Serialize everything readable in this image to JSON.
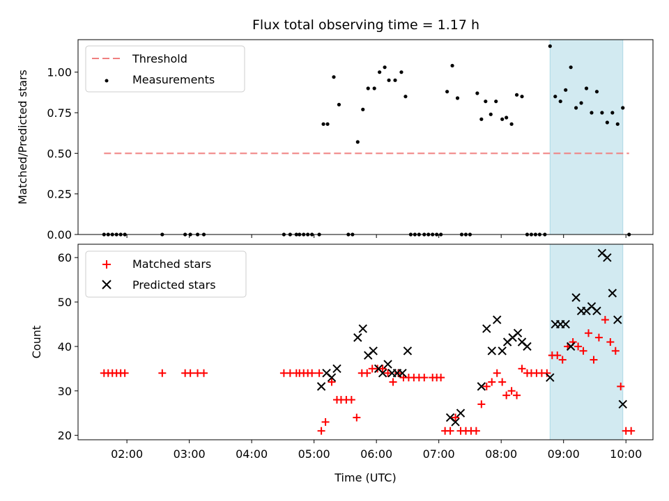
{
  "chart_data": {
    "title": "Flux total observing time = 1.17 h",
    "xlabel": "Time (UTC)",
    "x_ticks": [
      "02:00",
      "03:00",
      "04:00",
      "05:00",
      "06:00",
      "07:00",
      "08:00",
      "09:00",
      "10:00"
    ],
    "xlim": [
      "01:13",
      "10:26"
    ],
    "shaded_region": {
      "start": "08:47",
      "end": "09:57",
      "color": "#add8e6"
    },
    "top": {
      "type": "scatter",
      "ylabel": "Matched/Predicted stars",
      "ylim": [
        0,
        1.2
      ],
      "y_ticks": [
        "0.00",
        "0.25",
        "0.50",
        "0.75",
        "1.00"
      ],
      "legend": {
        "placement": "top-left",
        "entries": [
          "Threshold",
          "Measurements"
        ]
      },
      "threshold": {
        "name": "Threshold",
        "value": 0.5,
        "x_start": "01:38",
        "x_end": "10:03",
        "color": "#f08080",
        "style": "dashed"
      },
      "measurements": {
        "name": "Measurements",
        "color": "#000000",
        "points": [
          [
            "01:38",
            0
          ],
          [
            "01:42",
            0
          ],
          [
            "01:46",
            0
          ],
          [
            "01:50",
            0
          ],
          [
            "01:54",
            0
          ],
          [
            "01:58",
            0
          ],
          [
            "02:34",
            0
          ],
          [
            "02:56",
            0
          ],
          [
            "03:01",
            0
          ],
          [
            "03:08",
            0
          ],
          [
            "03:14",
            0
          ],
          [
            "04:31",
            0
          ],
          [
            "04:37",
            0
          ],
          [
            "04:43",
            0
          ],
          [
            "04:46",
            0
          ],
          [
            "04:50",
            0
          ],
          [
            "04:54",
            0
          ],
          [
            "04:58",
            0
          ],
          [
            "05:05",
            0
          ],
          [
            "05:09",
            0.68
          ],
          [
            "05:13",
            0.68
          ],
          [
            "05:19",
            0.97
          ],
          [
            "05:24",
            0.8
          ],
          [
            "05:33",
            0
          ],
          [
            "05:37",
            0
          ],
          [
            "05:42",
            0.57
          ],
          [
            "05:47",
            0.77
          ],
          [
            "05:52",
            0.9
          ],
          [
            "05:58",
            0.9
          ],
          [
            "06:03",
            1.0
          ],
          [
            "06:08",
            1.03
          ],
          [
            "06:12",
            0.95
          ],
          [
            "06:18",
            0.95
          ],
          [
            "06:24",
            1.0
          ],
          [
            "06:28",
            0.85
          ],
          [
            "06:33",
            0
          ],
          [
            "06:37",
            0
          ],
          [
            "06:41",
            0
          ],
          [
            "06:46",
            0
          ],
          [
            "06:50",
            0
          ],
          [
            "06:54",
            0
          ],
          [
            "06:58",
            0
          ],
          [
            "07:02",
            0
          ],
          [
            "07:08",
            0.88
          ],
          [
            "07:13",
            1.04
          ],
          [
            "07:18",
            0.84
          ],
          [
            "07:22",
            0
          ],
          [
            "07:26",
            0
          ],
          [
            "07:30",
            0
          ],
          [
            "07:37",
            0.87
          ],
          [
            "07:41",
            0.71
          ],
          [
            "07:45",
            0.82
          ],
          [
            "07:50",
            0.74
          ],
          [
            "07:55",
            0.82
          ],
          [
            "08:01",
            0.71
          ],
          [
            "08:05",
            0.72
          ],
          [
            "08:10",
            0.68
          ],
          [
            "08:15",
            0.86
          ],
          [
            "08:20",
            0.85
          ],
          [
            "08:25",
            0
          ],
          [
            "08:29",
            0
          ],
          [
            "08:33",
            0
          ],
          [
            "08:37",
            0
          ],
          [
            "08:42",
            0
          ],
          [
            "08:47",
            1.16
          ],
          [
            "08:52",
            0.85
          ],
          [
            "08:57",
            0.82
          ],
          [
            "09:02",
            0.89
          ],
          [
            "09:07",
            1.03
          ],
          [
            "09:12",
            0.78
          ],
          [
            "09:17",
            0.81
          ],
          [
            "09:22",
            0.9
          ],
          [
            "09:27",
            0.75
          ],
          [
            "09:32",
            0.88
          ],
          [
            "09:37",
            0.75
          ],
          [
            "09:42",
            0.69
          ],
          [
            "09:47",
            0.75
          ],
          [
            "09:52",
            0.68
          ],
          [
            "09:57",
            0.78
          ],
          [
            "10:03",
            0
          ]
        ]
      }
    },
    "bottom": {
      "type": "scatter",
      "ylabel": "Count",
      "ylim": [
        19,
        63
      ],
      "y_ticks": [
        "20",
        "30",
        "40",
        "50",
        "60"
      ],
      "legend": {
        "placement": "top-left",
        "entries": [
          "Matched stars",
          "Predicted stars"
        ]
      },
      "matched": {
        "name": "Matched stars",
        "color": "#ff0000",
        "marker": "plus",
        "points": [
          [
            "01:38",
            34
          ],
          [
            "01:42",
            34
          ],
          [
            "01:46",
            34
          ],
          [
            "01:50",
            34
          ],
          [
            "01:54",
            34
          ],
          [
            "01:58",
            34
          ],
          [
            "02:34",
            34
          ],
          [
            "02:56",
            34
          ],
          [
            "03:01",
            34
          ],
          [
            "03:08",
            34
          ],
          [
            "03:14",
            34
          ],
          [
            "04:31",
            34
          ],
          [
            "04:37",
            34
          ],
          [
            "04:43",
            34
          ],
          [
            "04:46",
            34
          ],
          [
            "04:50",
            34
          ],
          [
            "04:54",
            34
          ],
          [
            "04:58",
            34
          ],
          [
            "05:05",
            34
          ],
          [
            "05:07",
            21
          ],
          [
            "05:11",
            23
          ],
          [
            "05:17",
            32
          ],
          [
            "05:22",
            28
          ],
          [
            "05:26",
            28
          ],
          [
            "05:31",
            28
          ],
          [
            "05:36",
            28
          ],
          [
            "05:41",
            24
          ],
          [
            "05:46",
            34
          ],
          [
            "05:51",
            34
          ],
          [
            "05:56",
            35
          ],
          [
            "06:01",
            35
          ],
          [
            "06:06",
            35
          ],
          [
            "06:11",
            34
          ],
          [
            "06:16",
            32
          ],
          [
            "06:21",
            34
          ],
          [
            "06:26",
            33
          ],
          [
            "06:31",
            33
          ],
          [
            "06:36",
            33
          ],
          [
            "06:41",
            33
          ],
          [
            "06:46",
            33
          ],
          [
            "06:54",
            33
          ],
          [
            "06:58",
            33
          ],
          [
            "07:02",
            33
          ],
          [
            "07:06",
            21
          ],
          [
            "07:11",
            21
          ],
          [
            "07:16",
            24
          ],
          [
            "07:21",
            21
          ],
          [
            "07:26",
            21
          ],
          [
            "07:31",
            21
          ],
          [
            "07:36",
            21
          ],
          [
            "07:41",
            27
          ],
          [
            "07:46",
            31
          ],
          [
            "07:51",
            32
          ],
          [
            "07:56",
            34
          ],
          [
            "08:01",
            32
          ],
          [
            "08:05",
            29
          ],
          [
            "08:10",
            30
          ],
          [
            "08:15",
            29
          ],
          [
            "08:20",
            35
          ],
          [
            "08:25",
            34
          ],
          [
            "08:29",
            34
          ],
          [
            "08:34",
            34
          ],
          [
            "08:39",
            34
          ],
          [
            "08:44",
            34
          ],
          [
            "08:49",
            38
          ],
          [
            "08:54",
            38
          ],
          [
            "08:59",
            37
          ],
          [
            "09:04",
            40
          ],
          [
            "09:09",
            41
          ],
          [
            "09:14",
            40
          ],
          [
            "09:19",
            39
          ],
          [
            "09:24",
            43
          ],
          [
            "09:29",
            37
          ],
          [
            "09:34",
            42
          ],
          [
            "09:40",
            46
          ],
          [
            "09:45",
            41
          ],
          [
            "09:50",
            39
          ],
          [
            "09:55",
            31
          ],
          [
            "09:60",
            21
          ],
          [
            "10:05",
            21
          ]
        ]
      },
      "predicted": {
        "name": "Predicted stars",
        "color": "#000000",
        "marker": "x",
        "points": [
          [
            "05:07",
            31
          ],
          [
            "05:12",
            34
          ],
          [
            "05:17",
            33
          ],
          [
            "05:22",
            35
          ],
          [
            "05:42",
            42
          ],
          [
            "05:47",
            44
          ],
          [
            "05:52",
            38
          ],
          [
            "05:57",
            39
          ],
          [
            "06:02",
            35
          ],
          [
            "06:06",
            34
          ],
          [
            "06:11",
            36
          ],
          [
            "06:15",
            34
          ],
          [
            "06:20",
            34
          ],
          [
            "06:25",
            34
          ],
          [
            "06:30",
            39
          ],
          [
            "07:11",
            24
          ],
          [
            "07:16",
            23
          ],
          [
            "07:21",
            25
          ],
          [
            "07:41",
            31
          ],
          [
            "07:46",
            44
          ],
          [
            "07:51",
            39
          ],
          [
            "07:56",
            46
          ],
          [
            "08:01",
            39
          ],
          [
            "08:06",
            41
          ],
          [
            "08:11",
            42
          ],
          [
            "08:16",
            43
          ],
          [
            "08:20",
            41
          ],
          [
            "08:25",
            40
          ],
          [
            "08:47",
            33
          ],
          [
            "08:52",
            45
          ],
          [
            "08:57",
            45
          ],
          [
            "09:02",
            45
          ],
          [
            "09:07",
            40
          ],
          [
            "09:12",
            51
          ],
          [
            "09:17",
            48
          ],
          [
            "09:22",
            48
          ],
          [
            "09:27",
            49
          ],
          [
            "09:32",
            48
          ],
          [
            "09:37",
            61
          ],
          [
            "09:42",
            60
          ],
          [
            "09:47",
            52
          ],
          [
            "09:52",
            46
          ],
          [
            "09:57",
            27
          ]
        ]
      }
    }
  }
}
